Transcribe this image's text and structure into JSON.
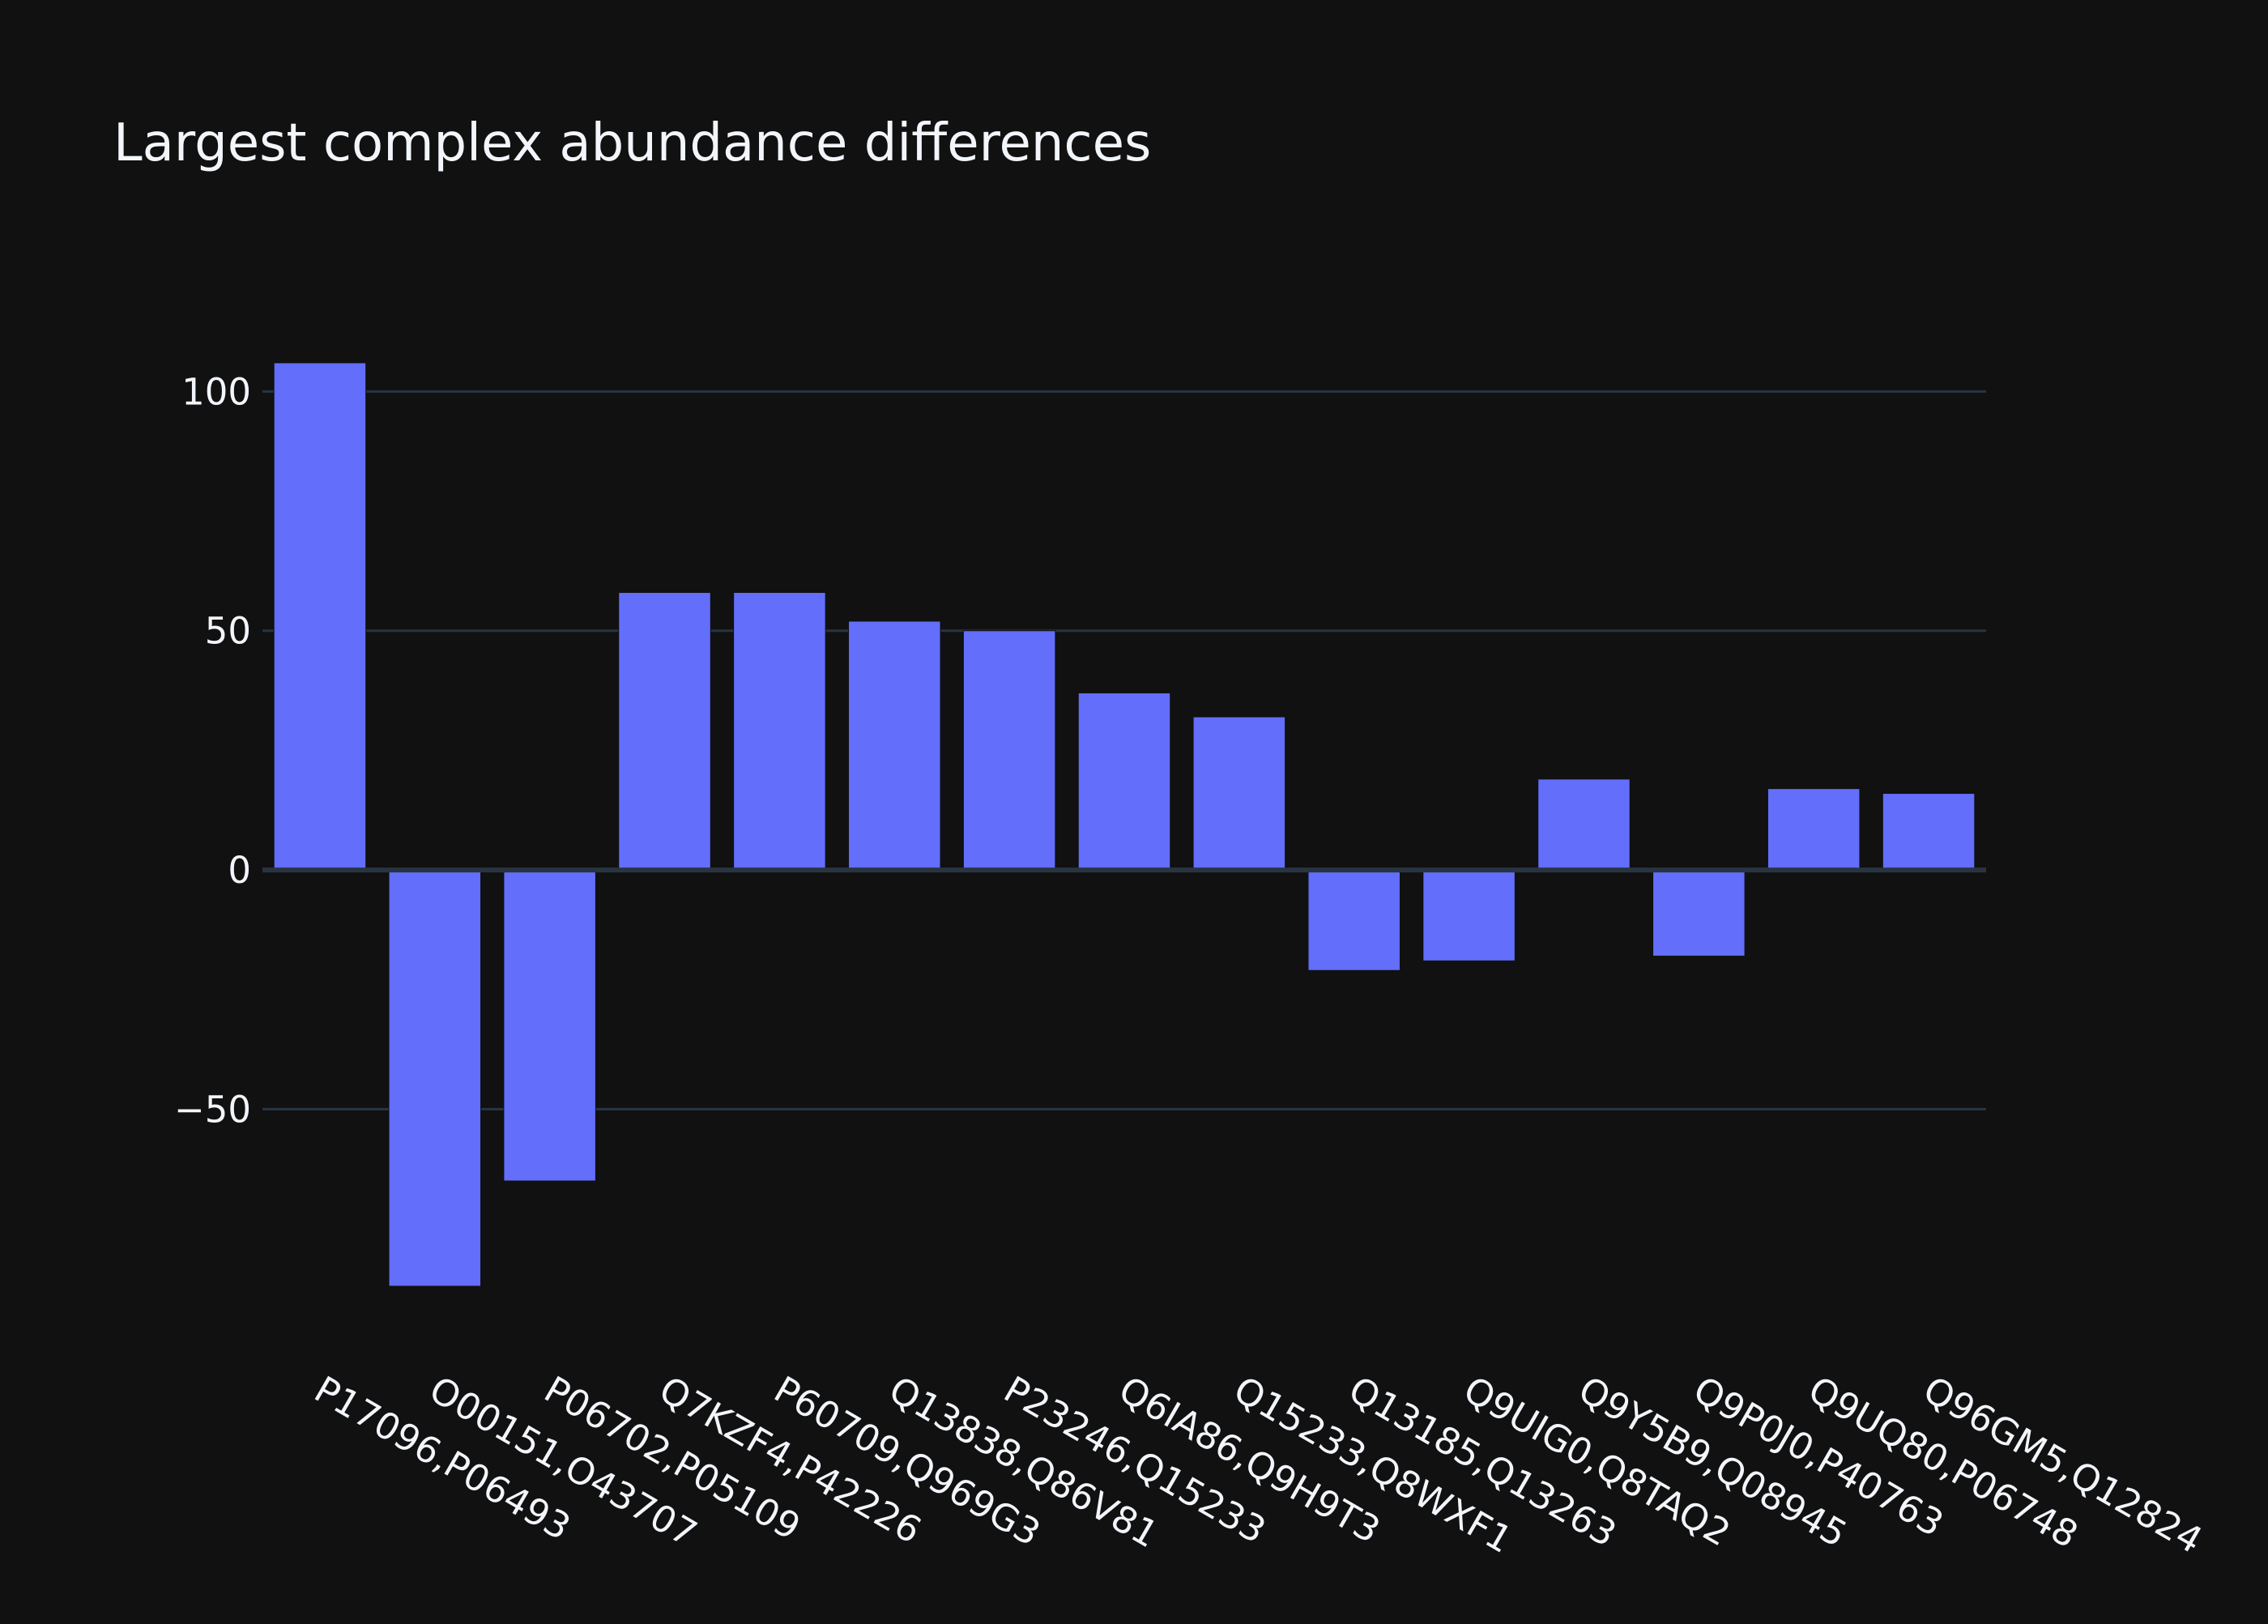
{
  "chart_data": {
    "type": "bar",
    "title": "Largest complex abundance differences",
    "xlabel": "",
    "ylabel": "",
    "categories": [
      "P17096,P06493",
      "O00151,O43707",
      "P06702,P05109",
      "Q7KZF4,P42226",
      "P60709,Q969G3",
      "Q13838,Q86V81",
      "P23246,Q15233",
      "Q6IA86,Q9H9T3",
      "Q15233,Q8WXF1",
      "Q13185,Q13263",
      "Q9UIG0,Q8TAQ2",
      "Q9Y5B9,Q08945",
      "Q9P0J0,P40763",
      "Q9UQ80,P06748",
      "Q96GM5,Q12824"
    ],
    "values": [
      106,
      -87,
      -65,
      58,
      58,
      52,
      50,
      37,
      32,
      -21,
      -19,
      19,
      -18,
      17,
      16
    ],
    "ylim": [
      -97.5,
      117.5
    ],
    "yticks": [
      {
        "value": -50,
        "label": "−50"
      },
      {
        "value": 0,
        "label": "0"
      },
      {
        "value": 50,
        "label": "50"
      },
      {
        "value": 100,
        "label": "100"
      }
    ],
    "grid": true,
    "legend": "none",
    "colors": {
      "bar": "#636efa",
      "background": "#111111",
      "grid": "#283442",
      "zeroline": "#283442",
      "text": "#f2f5fa"
    }
  }
}
